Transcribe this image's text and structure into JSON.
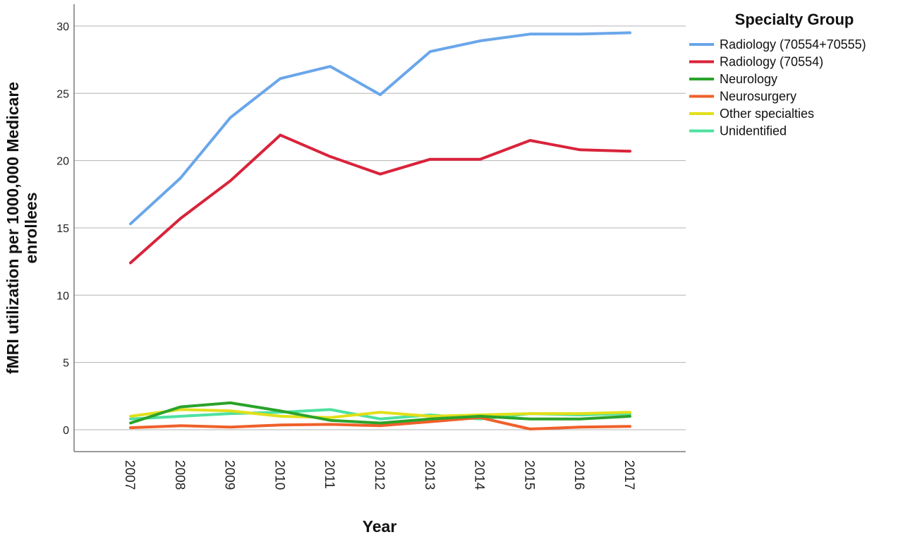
{
  "chart_data": {
    "type": "line",
    "title": "",
    "xlabel": "Year",
    "ylabel_lines": [
      "fMRI utilization per 1000,000 Medicare",
      "enrollees"
    ],
    "ylim": [
      0,
      30
    ],
    "yticks": [
      0,
      5,
      10,
      15,
      20,
      25,
      30
    ],
    "grid": true,
    "legend_title": "Specialty Group",
    "legend_position": "top-right",
    "categories": [
      "2007",
      "2008",
      "2009",
      "2010",
      "2011",
      "2012",
      "2013",
      "2014",
      "2015",
      "2016",
      "2017"
    ],
    "series": [
      {
        "name": "Radiology (70554+70555)",
        "color": "#6aa6ea",
        "values": [
          15.3,
          18.7,
          23.2,
          26.1,
          27.0,
          24.9,
          28.1,
          28.9,
          29.4,
          29.4,
          29.5
        ]
      },
      {
        "name": "Radiology (70554)",
        "color": "#d9233b",
        "values": [
          12.4,
          15.7,
          18.5,
          21.9,
          20.3,
          19.0,
          20.1,
          20.1,
          21.5,
          20.8,
          20.7
        ]
      },
      {
        "name": "Neurology",
        "color": "#2aa32a",
        "values": [
          0.5,
          1.7,
          2.0,
          1.4,
          0.7,
          0.5,
          0.8,
          1.0,
          0.8,
          0.8,
          1.0
        ]
      },
      {
        "name": "Neurosurgery",
        "color": "#f0602a",
        "values": [
          0.15,
          0.3,
          0.2,
          0.35,
          0.4,
          0.3,
          0.6,
          0.9,
          0.05,
          0.2,
          0.25
        ]
      },
      {
        "name": "Other specialties",
        "color": "#e2df1a",
        "values": [
          1.0,
          1.5,
          1.4,
          1.0,
          0.9,
          1.3,
          1.0,
          1.1,
          1.2,
          1.2,
          1.3
        ]
      },
      {
        "name": "Unidentified",
        "color": "#4ee0a0",
        "values": [
          0.8,
          1.0,
          1.2,
          1.3,
          1.5,
          0.8,
          1.1,
          0.8,
          1.2,
          1.1,
          1.2
        ]
      }
    ]
  }
}
